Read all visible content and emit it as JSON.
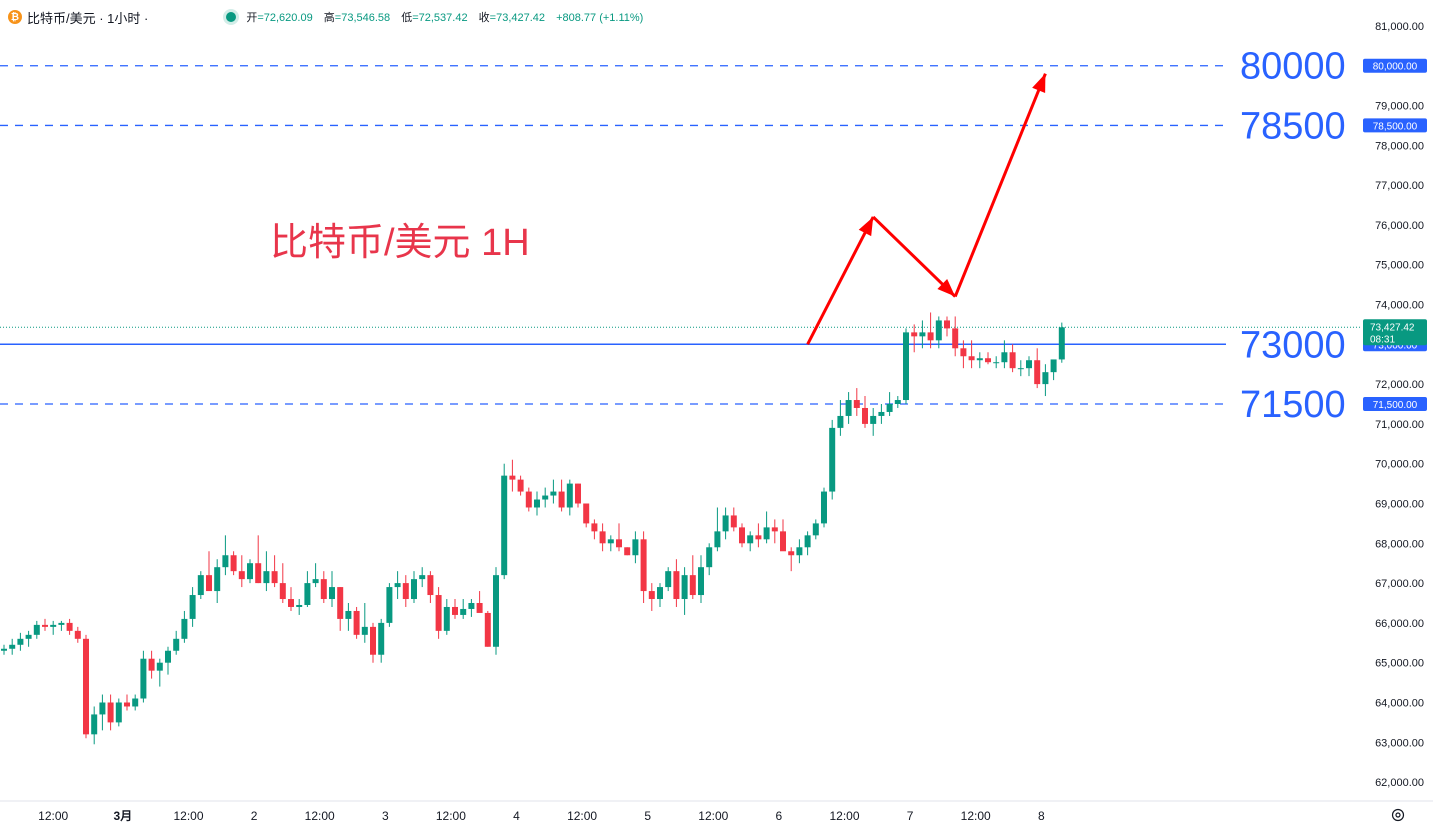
{
  "header": {
    "symbol": "比特币/美元 · 1小时 ·",
    "open_label": "开",
    "open": "=72,620.09",
    "high_label": "高",
    "high": "=73,546.58",
    "low_label": "低",
    "low": "=72,537.42",
    "close_label": "收",
    "close": "=73,427.42",
    "change": "+808.77 (+1.11%)"
  },
  "annotation": {
    "title": "比特币/美元 1H",
    "color": "#e8354b"
  },
  "colors": {
    "up": "#089981",
    "down": "#f23645",
    "level": "#2962ff",
    "arrow": "#ff0000",
    "grid": "#f0f3fa"
  },
  "levels": [
    {
      "value": 80000,
      "label": "80000",
      "axis_tag": "80,000.00",
      "style": "dashed"
    },
    {
      "value": 78500,
      "label": "78500",
      "axis_tag": "78,500.00",
      "style": "dashed"
    },
    {
      "value": 73000,
      "label": "73000",
      "axis_tag": "73,000.00",
      "style": "solid"
    },
    {
      "value": 71500,
      "label": "71500",
      "axis_tag": "71,500.00",
      "style": "dashed"
    }
  ],
  "last_price": {
    "value": 73427.42,
    "label": "73,427.42",
    "countdown": "08:31"
  },
  "projection": [
    {
      "t": 98,
      "p": 73000
    },
    {
      "t": 106,
      "p": 76200
    },
    {
      "t": 116,
      "p": 74200
    },
    {
      "t": 127,
      "p": 79800
    }
  ],
  "chart_data": {
    "type": "candlestick",
    "title": "比特币/美元 · 1小时",
    "y_ticks": [
      "81,000.00",
      "80,000.00",
      "79,000.00",
      "78,000.00",
      "77,000.00",
      "76,000.00",
      "75,000.00",
      "74,000.00",
      "73,000.00",
      "72,000.00",
      "71,000.00",
      "70,000.00",
      "69,000.00",
      "68,000.00",
      "67,000.00",
      "66,000.00",
      "65,000.00",
      "64,000.00",
      "63,000.00",
      "62,000.00"
    ],
    "y_tick_values": [
      81000,
      80000,
      79000,
      78000,
      77000,
      76000,
      75000,
      74000,
      73000,
      72000,
      71000,
      70000,
      69000,
      68000,
      67000,
      66000,
      65000,
      64000,
      63000,
      62000
    ],
    "ylim": [
      61550,
      81400
    ],
    "x_ticks": [
      {
        "t": 6,
        "label": "12:00"
      },
      {
        "t": 14.5,
        "label": "3月"
      },
      {
        "t": 22.5,
        "label": "12:00"
      },
      {
        "t": 30.5,
        "label": "2"
      },
      {
        "t": 38.5,
        "label": "12:00"
      },
      {
        "t": 46.5,
        "label": "3"
      },
      {
        "t": 54.5,
        "label": "12:00"
      },
      {
        "t": 62.5,
        "label": "4"
      },
      {
        "t": 70.5,
        "label": "12:00"
      },
      {
        "t": 78.5,
        "label": "5"
      },
      {
        "t": 86.5,
        "label": "12:00"
      },
      {
        "t": 94.5,
        "label": "6"
      },
      {
        "t": 102.5,
        "label": "12:00"
      },
      {
        "t": 110.5,
        "label": "7"
      },
      {
        "t": 118.5,
        "label": "12:00"
      },
      {
        "t": 126.5,
        "label": "8"
      }
    ],
    "candles": [
      [
        65300,
        65450,
        65200,
        65350
      ],
      [
        65350,
        65600,
        65200,
        65450
      ],
      [
        65450,
        65750,
        65300,
        65600
      ],
      [
        65600,
        65800,
        65400,
        65700
      ],
      [
        65700,
        66050,
        65600,
        65950
      ],
      [
        65950,
        66100,
        65800,
        65900
      ],
      [
        65900,
        66050,
        65700,
        65950
      ],
      [
        65950,
        66050,
        65800,
        66000
      ],
      [
        66000,
        66100,
        65700,
        65800
      ],
      [
        65800,
        65900,
        65500,
        65600
      ],
      [
        65600,
        65700,
        63100,
        63200
      ],
      [
        63200,
        63900,
        62950,
        63700
      ],
      [
        63700,
        64200,
        63300,
        64000
      ],
      [
        64000,
        64200,
        63300,
        63500
      ],
      [
        63500,
        64100,
        63400,
        64000
      ],
      [
        64000,
        64200,
        63800,
        63900
      ],
      [
        63900,
        64200,
        63800,
        64100
      ],
      [
        64100,
        65300,
        64000,
        65100
      ],
      [
        65100,
        65300,
        64600,
        64800
      ],
      [
        64800,
        65100,
        64400,
        65000
      ],
      [
        65000,
        65400,
        64700,
        65300
      ],
      [
        65300,
        65800,
        65200,
        65600
      ],
      [
        65600,
        66300,
        65500,
        66100
      ],
      [
        66100,
        66900,
        65900,
        66700
      ],
      [
        66700,
        67300,
        66600,
        67200
      ],
      [
        67200,
        67800,
        66900,
        66800
      ],
      [
        66800,
        67600,
        66500,
        67400
      ],
      [
        67400,
        68200,
        67200,
        67700
      ],
      [
        67700,
        67800,
        67200,
        67300
      ],
      [
        67300,
        67700,
        66900,
        67100
      ],
      [
        67100,
        67600,
        67000,
        67500
      ],
      [
        67500,
        68200,
        67000,
        67000
      ],
      [
        67000,
        67800,
        66800,
        67300
      ],
      [
        67300,
        67700,
        66900,
        67000
      ],
      [
        67000,
        67500,
        66500,
        66600
      ],
      [
        66600,
        66900,
        66300,
        66400
      ],
      [
        66400,
        66600,
        66200,
        66450
      ],
      [
        66450,
        67300,
        66400,
        67000
      ],
      [
        67000,
        67500,
        66900,
        67100
      ],
      [
        67100,
        67300,
        66500,
        66600
      ],
      [
        66600,
        67300,
        66400,
        66900
      ],
      [
        66900,
        66900,
        65800,
        66100
      ],
      [
        66100,
        66500,
        65800,
        66300
      ],
      [
        66300,
        66400,
        65600,
        65700
      ],
      [
        65700,
        66500,
        65500,
        65900
      ],
      [
        65900,
        66000,
        65000,
        65200
      ],
      [
        65200,
        66100,
        65000,
        66000
      ],
      [
        66000,
        67000,
        65900,
        66900
      ],
      [
        66900,
        67300,
        66600,
        67000
      ],
      [
        67000,
        67200,
        66400,
        66600
      ],
      [
        66600,
        67300,
        66500,
        67100
      ],
      [
        67100,
        67400,
        66900,
        67200
      ],
      [
        67200,
        67300,
        66500,
        66700
      ],
      [
        66700,
        66900,
        65600,
        65800
      ],
      [
        65800,
        66600,
        65700,
        66400
      ],
      [
        66400,
        66600,
        66100,
        66200
      ],
      [
        66200,
        66600,
        66100,
        66350
      ],
      [
        66350,
        66600,
        66150,
        66500
      ],
      [
        66500,
        66800,
        66300,
        66250
      ],
      [
        66250,
        66300,
        65400,
        65400
      ],
      [
        65400,
        67400,
        65200,
        67200
      ],
      [
        67200,
        70000,
        67100,
        69700
      ],
      [
        69700,
        70100,
        69300,
        69600
      ],
      [
        69600,
        69700,
        69200,
        69300
      ],
      [
        69300,
        69400,
        68800,
        68900
      ],
      [
        68900,
        69300,
        68700,
        69100
      ],
      [
        69100,
        69400,
        68900,
        69200
      ],
      [
        69200,
        69600,
        69000,
        69300
      ],
      [
        69300,
        69600,
        68800,
        68900
      ],
      [
        68900,
        69600,
        68700,
        69500
      ],
      [
        69500,
        69500,
        68900,
        69000
      ],
      [
        69000,
        69000,
        68400,
        68500
      ],
      [
        68500,
        68600,
        68100,
        68300
      ],
      [
        68300,
        68500,
        67800,
        68000
      ],
      [
        68000,
        68200,
        67800,
        68100
      ],
      [
        68100,
        68500,
        67800,
        67900
      ],
      [
        67900,
        67900,
        67700,
        67700
      ],
      [
        67700,
        68300,
        67500,
        68100
      ],
      [
        68100,
        68300,
        66500,
        66800
      ],
      [
        66800,
        67000,
        66300,
        66600
      ],
      [
        66600,
        67000,
        66400,
        66900
      ],
      [
        66900,
        67400,
        66800,
        67300
      ],
      [
        67300,
        67600,
        66400,
        66600
      ],
      [
        66600,
        67400,
        66200,
        67200
      ],
      [
        67200,
        67700,
        66600,
        66700
      ],
      [
        66700,
        67700,
        66500,
        67400
      ],
      [
        67400,
        68000,
        67200,
        67900
      ],
      [
        67900,
        68900,
        67800,
        68300
      ],
      [
        68300,
        68900,
        68100,
        68700
      ],
      [
        68700,
        68900,
        68300,
        68400
      ],
      [
        68400,
        68500,
        67900,
        68000
      ],
      [
        68000,
        68300,
        67800,
        68200
      ],
      [
        68200,
        68500,
        67900,
        68100
      ],
      [
        68100,
        68800,
        68000,
        68400
      ],
      [
        68400,
        68600,
        68000,
        68300
      ],
      [
        68300,
        68600,
        67900,
        67800
      ],
      [
        67800,
        67900,
        67300,
        67700
      ],
      [
        67700,
        68100,
        67500,
        67900
      ],
      [
        67900,
        68300,
        67700,
        68200
      ],
      [
        68200,
        68600,
        68100,
        68500
      ],
      [
        68500,
        69400,
        68400,
        69300
      ],
      [
        69300,
        71100,
        69100,
        70900
      ],
      [
        70900,
        71600,
        70700,
        71200
      ],
      [
        71200,
        71800,
        71000,
        71600
      ],
      [
        71600,
        71900,
        71200,
        71400
      ],
      [
        71400,
        71700,
        70900,
        71000
      ],
      [
        71000,
        71400,
        70700,
        71200
      ],
      [
        71200,
        71500,
        71000,
        71300
      ],
      [
        71300,
        71800,
        71200,
        71500
      ],
      [
        71500,
        71700,
        71400,
        71600
      ],
      [
        71600,
        73400,
        71500,
        73300
      ],
      [
        73300,
        73500,
        72800,
        73200
      ],
      [
        73200,
        73600,
        72900,
        73300
      ],
      [
        73300,
        73800,
        72900,
        73100
      ],
      [
        73100,
        73700,
        72900,
        73600
      ],
      [
        73600,
        73700,
        73200,
        73400
      ],
      [
        73400,
        73700,
        72700,
        72900
      ],
      [
        72900,
        73100,
        72400,
        72700
      ],
      [
        72700,
        73100,
        72400,
        72600
      ],
      [
        72600,
        72800,
        72400,
        72650
      ],
      [
        72650,
        72800,
        72500,
        72550
      ],
      [
        72550,
        72700,
        72400,
        72550
      ],
      [
        72550,
        73100,
        72400,
        72800
      ],
      [
        72800,
        73000,
        72300,
        72400
      ],
      [
        72400,
        72600,
        72200,
        72400
      ],
      [
        72400,
        72700,
        72200,
        72600
      ],
      [
        72600,
        72900,
        71900,
        72000
      ],
      [
        72000,
        72500,
        71700,
        72300
      ],
      [
        72300,
        72600,
        72100,
        72620
      ],
      [
        72620,
        73546,
        72537,
        73427
      ]
    ]
  }
}
